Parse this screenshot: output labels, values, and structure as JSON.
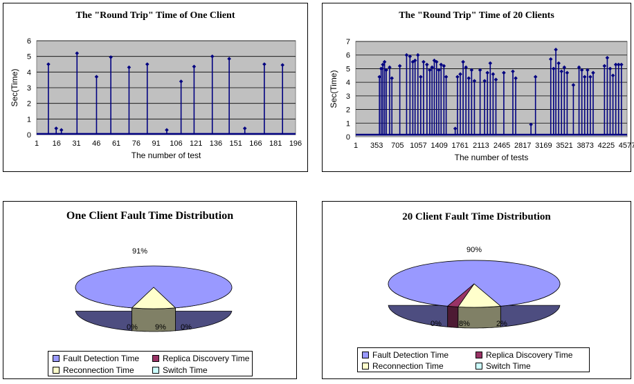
{
  "chart_data": [
    {
      "type": "line",
      "title": "The \"Round Trip\" Time of One Client",
      "xlabel": "The number of test",
      "ylabel": "Sec(Time)",
      "ylim": [
        0,
        6
      ],
      "yticks": [
        "0",
        "1",
        "2",
        "3",
        "4",
        "5",
        "6"
      ],
      "xticks": [
        "1",
        "16",
        "31",
        "46",
        "61",
        "76",
        "91",
        "106",
        "121",
        "136",
        "151",
        "166",
        "181",
        "196"
      ],
      "xrange": [
        1,
        200
      ],
      "grid": true,
      "baseline": 0.05,
      "spikes": [
        {
          "x": 10,
          "y": 4.5
        },
        {
          "x": 16,
          "y": 0.4
        },
        {
          "x": 20,
          "y": 0.3
        },
        {
          "x": 32,
          "y": 5.2
        },
        {
          "x": 47,
          "y": 3.7
        },
        {
          "x": 58,
          "y": 4.95
        },
        {
          "x": 72,
          "y": 4.3
        },
        {
          "x": 86,
          "y": 4.5
        },
        {
          "x": 101,
          "y": 0.3
        },
        {
          "x": 112,
          "y": 3.4
        },
        {
          "x": 122,
          "y": 4.35
        },
        {
          "x": 136,
          "y": 5.0
        },
        {
          "x": 149,
          "y": 4.85
        },
        {
          "x": 161,
          "y": 0.4
        },
        {
          "x": 176,
          "y": 4.5
        },
        {
          "x": 190,
          "y": 4.45
        }
      ]
    },
    {
      "type": "line",
      "title": "The \"Round Trip\" Time of 20 Clients",
      "xlabel": "The number of tests",
      "ylabel": "Sec(Time)",
      "ylim": [
        0,
        7
      ],
      "yticks": [
        "0",
        "1",
        "2",
        "3",
        "4",
        "5",
        "6",
        "7"
      ],
      "xticks": [
        "1",
        "353",
        "705",
        "1057",
        "1409",
        "1761",
        "2113",
        "2465",
        "2817",
        "3169",
        "3521",
        "3873",
        "4225",
        "4577"
      ],
      "xrange": [
        1,
        4800
      ],
      "grid": true,
      "baseline": 0.15,
      "spikes": [
        {
          "x": 420,
          "y": 4.4
        },
        {
          "x": 450,
          "y": 5.0
        },
        {
          "x": 480,
          "y": 5.3
        },
        {
          "x": 510,
          "y": 5.5
        },
        {
          "x": 540,
          "y": 4.9
        },
        {
          "x": 600,
          "y": 5.1
        },
        {
          "x": 640,
          "y": 4.3
        },
        {
          "x": 780,
          "y": 5.2
        },
        {
          "x": 900,
          "y": 6.0
        },
        {
          "x": 960,
          "y": 5.9
        },
        {
          "x": 1010,
          "y": 5.5
        },
        {
          "x": 1050,
          "y": 5.6
        },
        {
          "x": 1100,
          "y": 6.0
        },
        {
          "x": 1150,
          "y": 4.4
        },
        {
          "x": 1200,
          "y": 5.5
        },
        {
          "x": 1260,
          "y": 5.3
        },
        {
          "x": 1310,
          "y": 4.9
        },
        {
          "x": 1350,
          "y": 5.1
        },
        {
          "x": 1390,
          "y": 5.6
        },
        {
          "x": 1430,
          "y": 5.5
        },
        {
          "x": 1470,
          "y": 4.9
        },
        {
          "x": 1510,
          "y": 5.3
        },
        {
          "x": 1560,
          "y": 5.2
        },
        {
          "x": 1600,
          "y": 4.4
        },
        {
          "x": 1760,
          "y": 0.6
        },
        {
          "x": 1800,
          "y": 4.4
        },
        {
          "x": 1850,
          "y": 4.6
        },
        {
          "x": 1900,
          "y": 5.5
        },
        {
          "x": 1950,
          "y": 5.1
        },
        {
          "x": 2000,
          "y": 4.3
        },
        {
          "x": 2050,
          "y": 4.9
        },
        {
          "x": 2100,
          "y": 4.1
        },
        {
          "x": 2200,
          "y": 4.9
        },
        {
          "x": 2280,
          "y": 4.1
        },
        {
          "x": 2330,
          "y": 4.7
        },
        {
          "x": 2380,
          "y": 5.4
        },
        {
          "x": 2430,
          "y": 4.6
        },
        {
          "x": 2480,
          "y": 4.2
        },
        {
          "x": 2620,
          "y": 4.7
        },
        {
          "x": 2780,
          "y": 4.8
        },
        {
          "x": 2830,
          "y": 4.3
        },
        {
          "x": 3180,
          "y": 4.4
        },
        {
          "x": 3100,
          "y": 0.9
        },
        {
          "x": 3450,
          "y": 5.7
        },
        {
          "x": 3500,
          "y": 5.0
        },
        {
          "x": 3540,
          "y": 6.4
        },
        {
          "x": 3590,
          "y": 5.4
        },
        {
          "x": 3640,
          "y": 4.8
        },
        {
          "x": 3690,
          "y": 5.1
        },
        {
          "x": 3740,
          "y": 4.7
        },
        {
          "x": 3850,
          "y": 3.8
        },
        {
          "x": 3950,
          "y": 5.1
        },
        {
          "x": 4000,
          "y": 4.9
        },
        {
          "x": 4050,
          "y": 4.4
        },
        {
          "x": 4100,
          "y": 4.9
        },
        {
          "x": 4150,
          "y": 4.4
        },
        {
          "x": 4200,
          "y": 4.7
        },
        {
          "x": 4400,
          "y": 5.2
        },
        {
          "x": 4450,
          "y": 5.8
        },
        {
          "x": 4500,
          "y": 5.0
        },
        {
          "x": 4550,
          "y": 4.5
        },
        {
          "x": 4600,
          "y": 5.3
        },
        {
          "x": 4650,
          "y": 5.3
        },
        {
          "x": 4700,
          "y": 5.3
        }
      ]
    },
    {
      "type": "pie",
      "title": "One Client Fault Time Distribution",
      "categories": [
        "Fault Detection Time",
        "Replica Discovery Time",
        "Reconnection Time",
        "Switch Time"
      ],
      "values": [
        91,
        0,
        9,
        0
      ],
      "labels": [
        "91%",
        "0%",
        "9%",
        "0%"
      ],
      "colors": [
        "#9999ff",
        "#993366",
        "#ffffcc",
        "#ccffff"
      ]
    },
    {
      "type": "pie",
      "title": "20 Client Fault Time Distribution",
      "categories": [
        "Fault Detection Time",
        "Replica Discovery Time",
        "Reconnection Time",
        "Switch Time"
      ],
      "values": [
        90,
        2,
        8,
        0
      ],
      "labels": [
        "90%",
        "2%",
        "8%",
        "0%"
      ],
      "colors": [
        "#9999ff",
        "#993366",
        "#ffffcc",
        "#ccffff"
      ]
    }
  ]
}
